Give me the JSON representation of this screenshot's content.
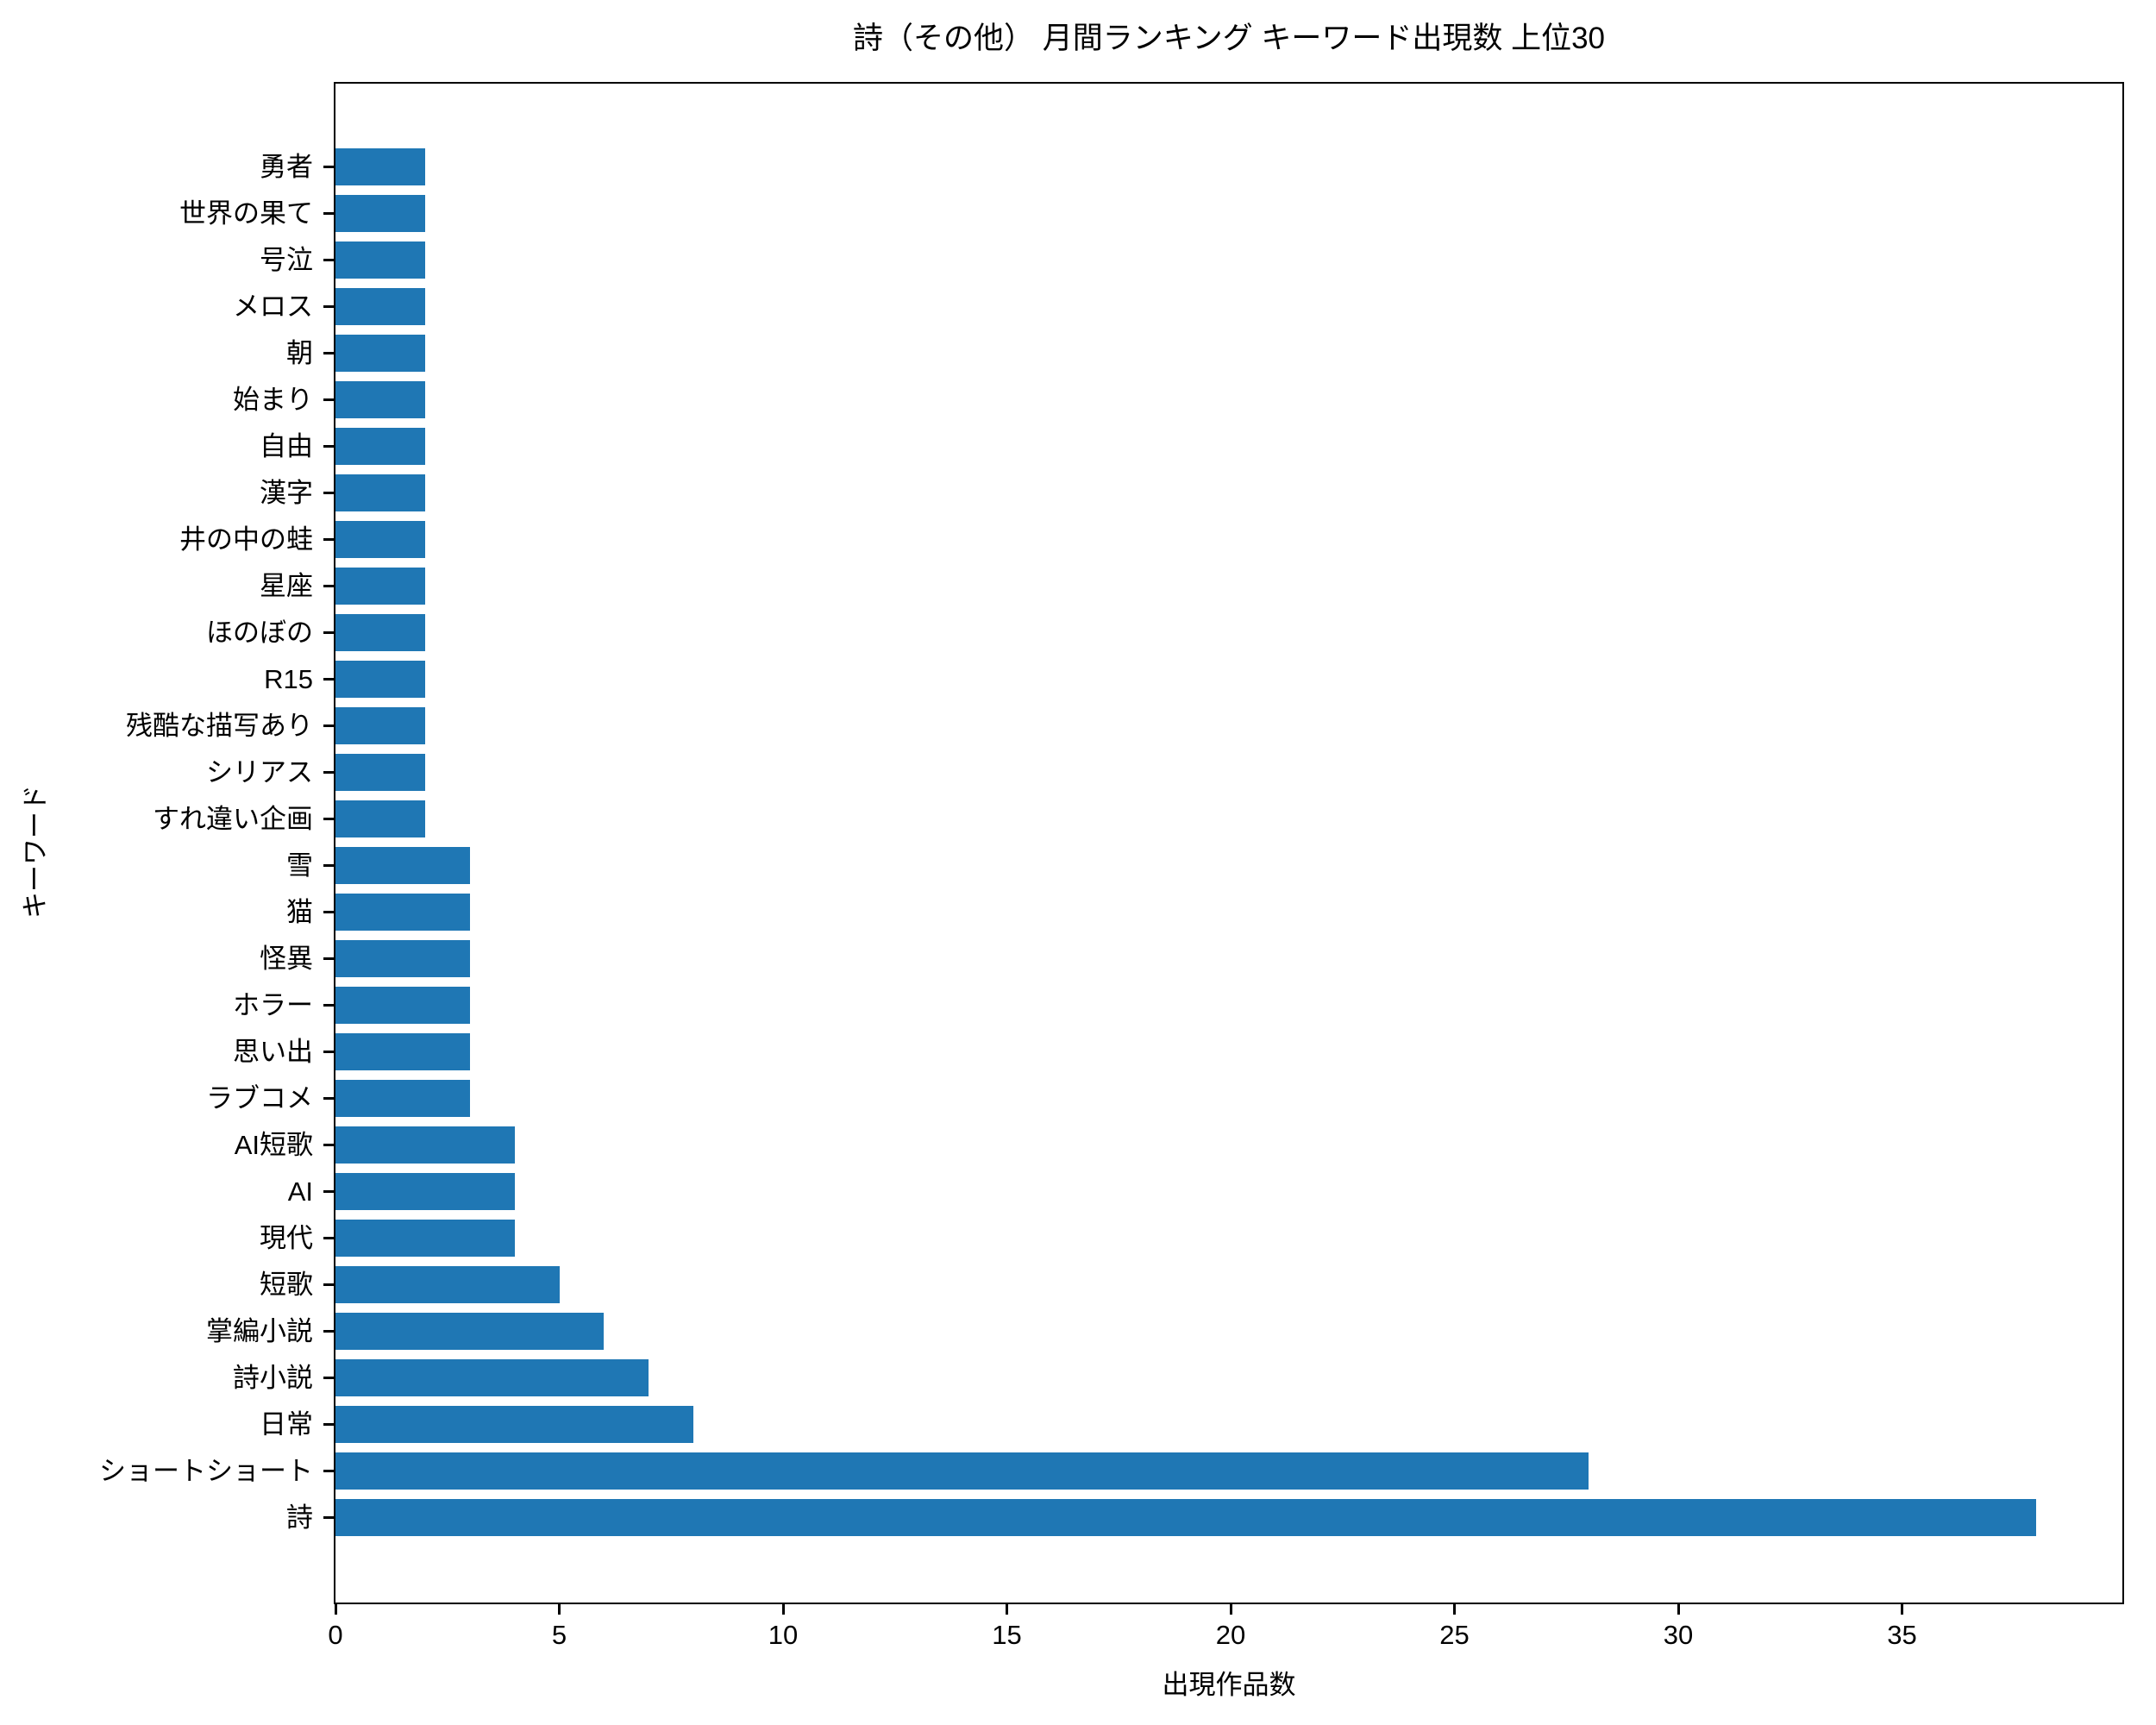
{
  "title": "詩（その他） 月間ランキング キーワード出現数 上位30",
  "chart_data": {
    "type": "bar",
    "orientation": "horizontal",
    "title": "詩（その他） 月間ランキング キーワード出現数 上位30",
    "xlabel": "出現作品数",
    "ylabel": "キーワード",
    "categories_top_to_bottom": [
      "勇者",
      "世界の果て",
      "号泣",
      "メロス",
      "朝",
      "始まり",
      "自由",
      "漢字",
      "井の中の蛙",
      "星座",
      "ほのぼの",
      "R15",
      "残酷な描写あり",
      "シリアス",
      "すれ違い企画",
      "雪",
      "猫",
      "怪異",
      "ホラー",
      "思い出",
      "ラブコメ",
      "AI短歌",
      "AI",
      "現代",
      "短歌",
      "掌編小説",
      "詩小説",
      "日常",
      "ショートショート",
      "詩"
    ],
    "values": [
      2,
      2,
      2,
      2,
      2,
      2,
      2,
      2,
      2,
      2,
      2,
      2,
      2,
      2,
      2,
      3,
      3,
      3,
      3,
      3,
      3,
      4,
      4,
      4,
      5,
      6,
      7,
      8,
      28,
      38
    ],
    "xlim": [
      0,
      40
    ],
    "xticks": [
      0,
      5,
      10,
      15,
      20,
      25,
      30,
      35
    ],
    "grid": "off",
    "legend": "none",
    "bar_color": "#1f77b4",
    "axis_color": "#000000",
    "background": "#ffffff"
  }
}
